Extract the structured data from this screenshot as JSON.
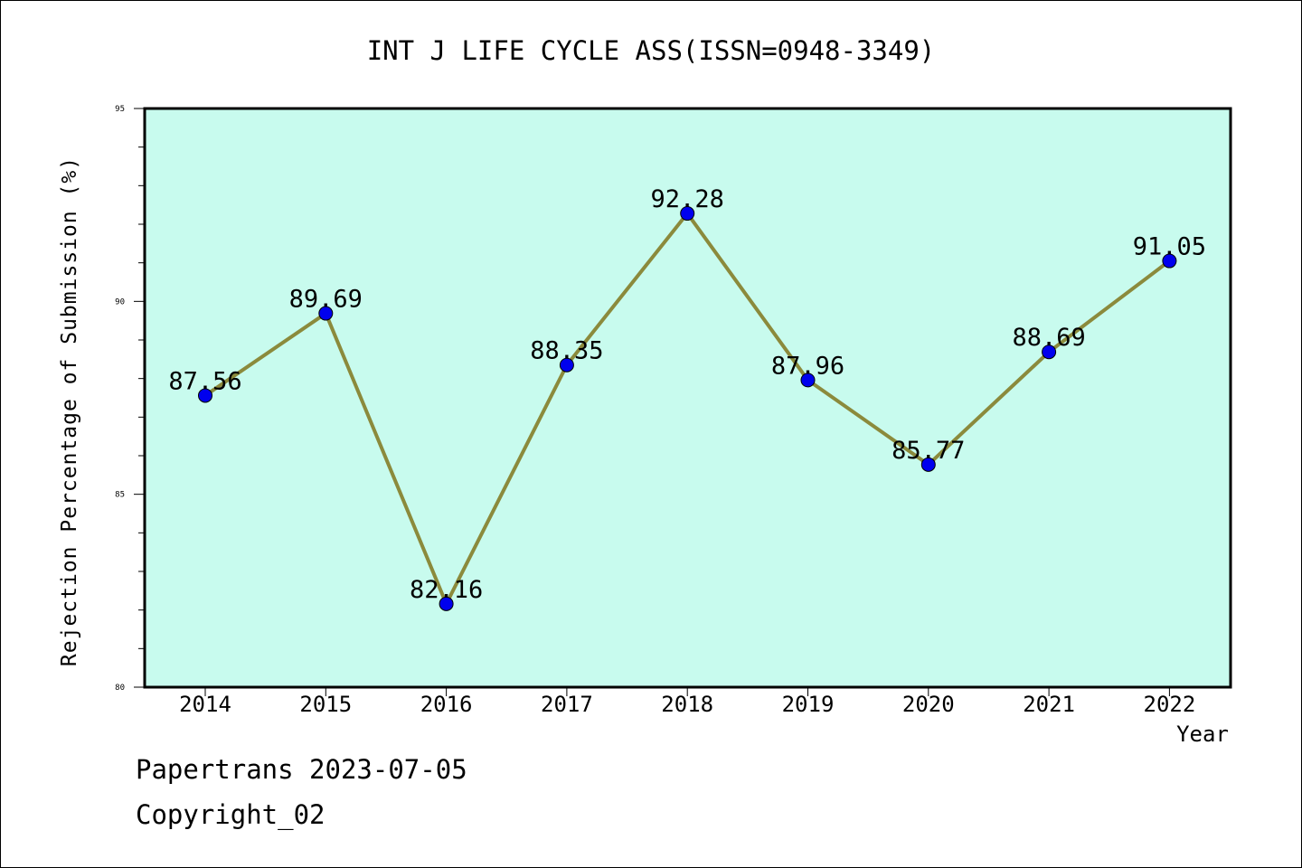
{
  "chart_data": {
    "type": "line",
    "title": "INT J LIFE CYCLE ASS(ISSN=0948-3349)",
    "xlabel": "Year",
    "ylabel": "Rejection Percentage of Submission (%)",
    "categories": [
      "2014",
      "2015",
      "2016",
      "2017",
      "2018",
      "2019",
      "2020",
      "2021",
      "2022"
    ],
    "series": [
      {
        "values": [
          87.56,
          89.69,
          82.16,
          88.35,
          92.28,
          87.96,
          85.77,
          88.69,
          91.05
        ],
        "labels": [
          "87.56",
          "89.69",
          "82.16",
          "88.35",
          "92.28",
          "87.96",
          "85.77",
          "88.69",
          "91.05"
        ],
        "line_color": "#8b8a3c",
        "marker_color": "#0000ee"
      }
    ],
    "ylim": [
      80,
      95
    ],
    "yticks": [
      "80",
      "85",
      "90",
      "95"
    ],
    "grid": false,
    "background_color": "#c8fbee"
  },
  "footer": {
    "line1": "Papertrans 2023-07-05",
    "line2": "Copyright_02"
  }
}
